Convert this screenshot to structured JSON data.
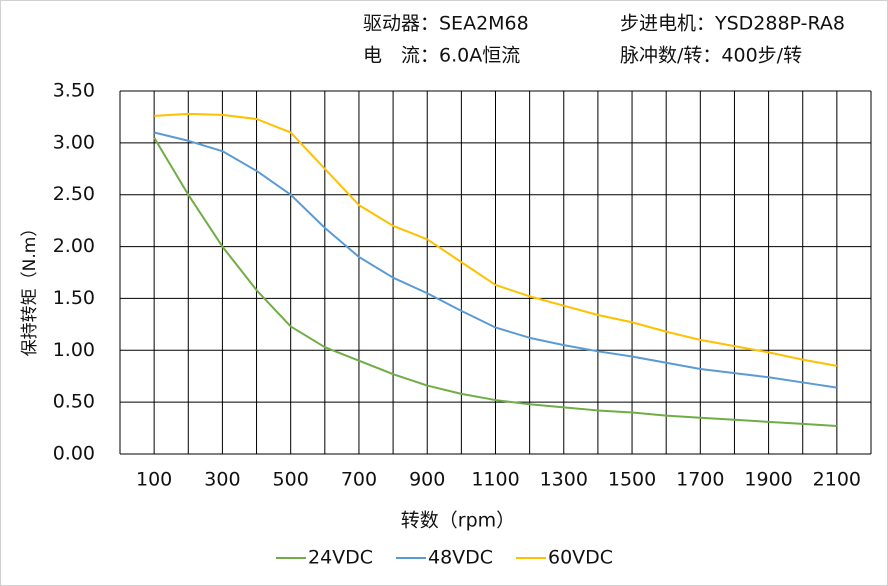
{
  "chart_data": {
    "type": "line",
    "header": [
      "驱动器：SEA2M68",
      "步进电机：YSD288P-RA8",
      "电　流：6.0A恒流",
      "脉冲数/转：400步/转"
    ],
    "x_label": "转数（rpm）",
    "y_label": "保持转矩（N.m）",
    "x": [
      100,
      200,
      300,
      400,
      500,
      600,
      700,
      800,
      900,
      1000,
      1100,
      1200,
      1300,
      1400,
      1500,
      1600,
      1700,
      1800,
      1900,
      2000,
      2100
    ],
    "series": [
      {
        "name": "24VDC",
        "color": "#70ad47",
        "values": [
          3.05,
          2.5,
          2.0,
          1.58,
          1.23,
          1.03,
          0.9,
          0.77,
          0.66,
          0.58,
          0.52,
          0.48,
          0.45,
          0.42,
          0.4,
          0.37,
          0.35,
          0.33,
          0.31,
          0.29,
          0.27
        ]
      },
      {
        "name": "48VDC",
        "color": "#5b9bd5",
        "values": [
          3.1,
          3.02,
          2.92,
          2.73,
          2.5,
          2.18,
          1.9,
          1.7,
          1.55,
          1.38,
          1.22,
          1.12,
          1.05,
          0.99,
          0.94,
          0.88,
          0.82,
          0.78,
          0.74,
          0.69,
          0.64
        ]
      },
      {
        "name": "60VDC",
        "color": "#ffc000",
        "values": [
          3.26,
          3.28,
          3.27,
          3.23,
          3.1,
          2.75,
          2.4,
          2.2,
          2.07,
          1.85,
          1.63,
          1.52,
          1.43,
          1.34,
          1.27,
          1.18,
          1.1,
          1.04,
          0.98,
          0.91,
          0.85
        ]
      }
    ],
    "xlim": [
      0,
      2200
    ],
    "xticks": [
      100,
      300,
      500,
      700,
      900,
      1100,
      1300,
      1500,
      1700,
      1900,
      2100
    ],
    "ylim": [
      0,
      3.5
    ],
    "yticks": [
      {
        "value": 0,
        "label": "0.00"
      },
      {
        "value": 0.5,
        "label": "0.50"
      },
      {
        "value": 1,
        "label": "1.00"
      },
      {
        "value": 1.5,
        "label": "1.50"
      },
      {
        "value": 2,
        "label": "2.00"
      },
      {
        "value": 2.5,
        "label": "2.50"
      },
      {
        "value": 3,
        "label": "3.00"
      },
      {
        "value": 3.5,
        "label": "3.50"
      }
    ],
    "grid": true,
    "legend": "bottom"
  }
}
